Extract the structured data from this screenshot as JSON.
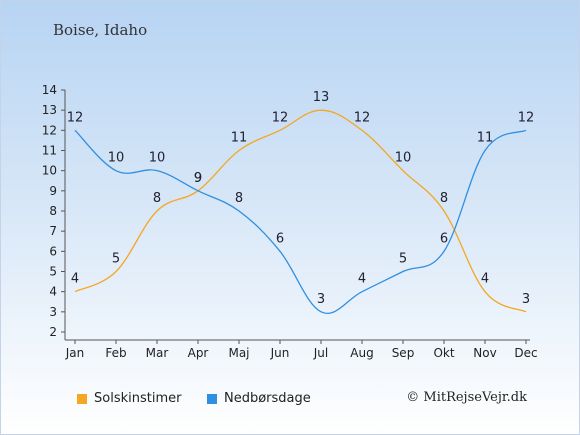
{
  "header": {
    "title": "Boise, Idaho"
  },
  "footer": {
    "copyright": "© MitRejseVejr.dk"
  },
  "chart_data": {
    "type": "line",
    "categories": [
      "Jan",
      "Feb",
      "Mar",
      "Apr",
      "Maj",
      "Jun",
      "Jul",
      "Aug",
      "Sep",
      "Okt",
      "Nov",
      "Dec"
    ],
    "ylim": [
      2,
      14
    ],
    "yticks": [
      2,
      3,
      4,
      5,
      6,
      7,
      8,
      9,
      10,
      11,
      12,
      13,
      14
    ],
    "grid": false,
    "legend_position": "bottom-left",
    "series": [
      {
        "name": "Solskinstimer",
        "color": "#f5a623",
        "values": [
          4,
          5,
          8,
          9,
          11,
          12,
          13,
          12,
          10,
          8,
          4,
          3
        ]
      },
      {
        "name": "Nedbørsdage",
        "color": "#2f8fe0",
        "values": [
          12,
          10,
          10,
          9,
          8,
          6,
          3,
          4,
          5,
          6,
          11,
          12
        ]
      }
    ]
  }
}
